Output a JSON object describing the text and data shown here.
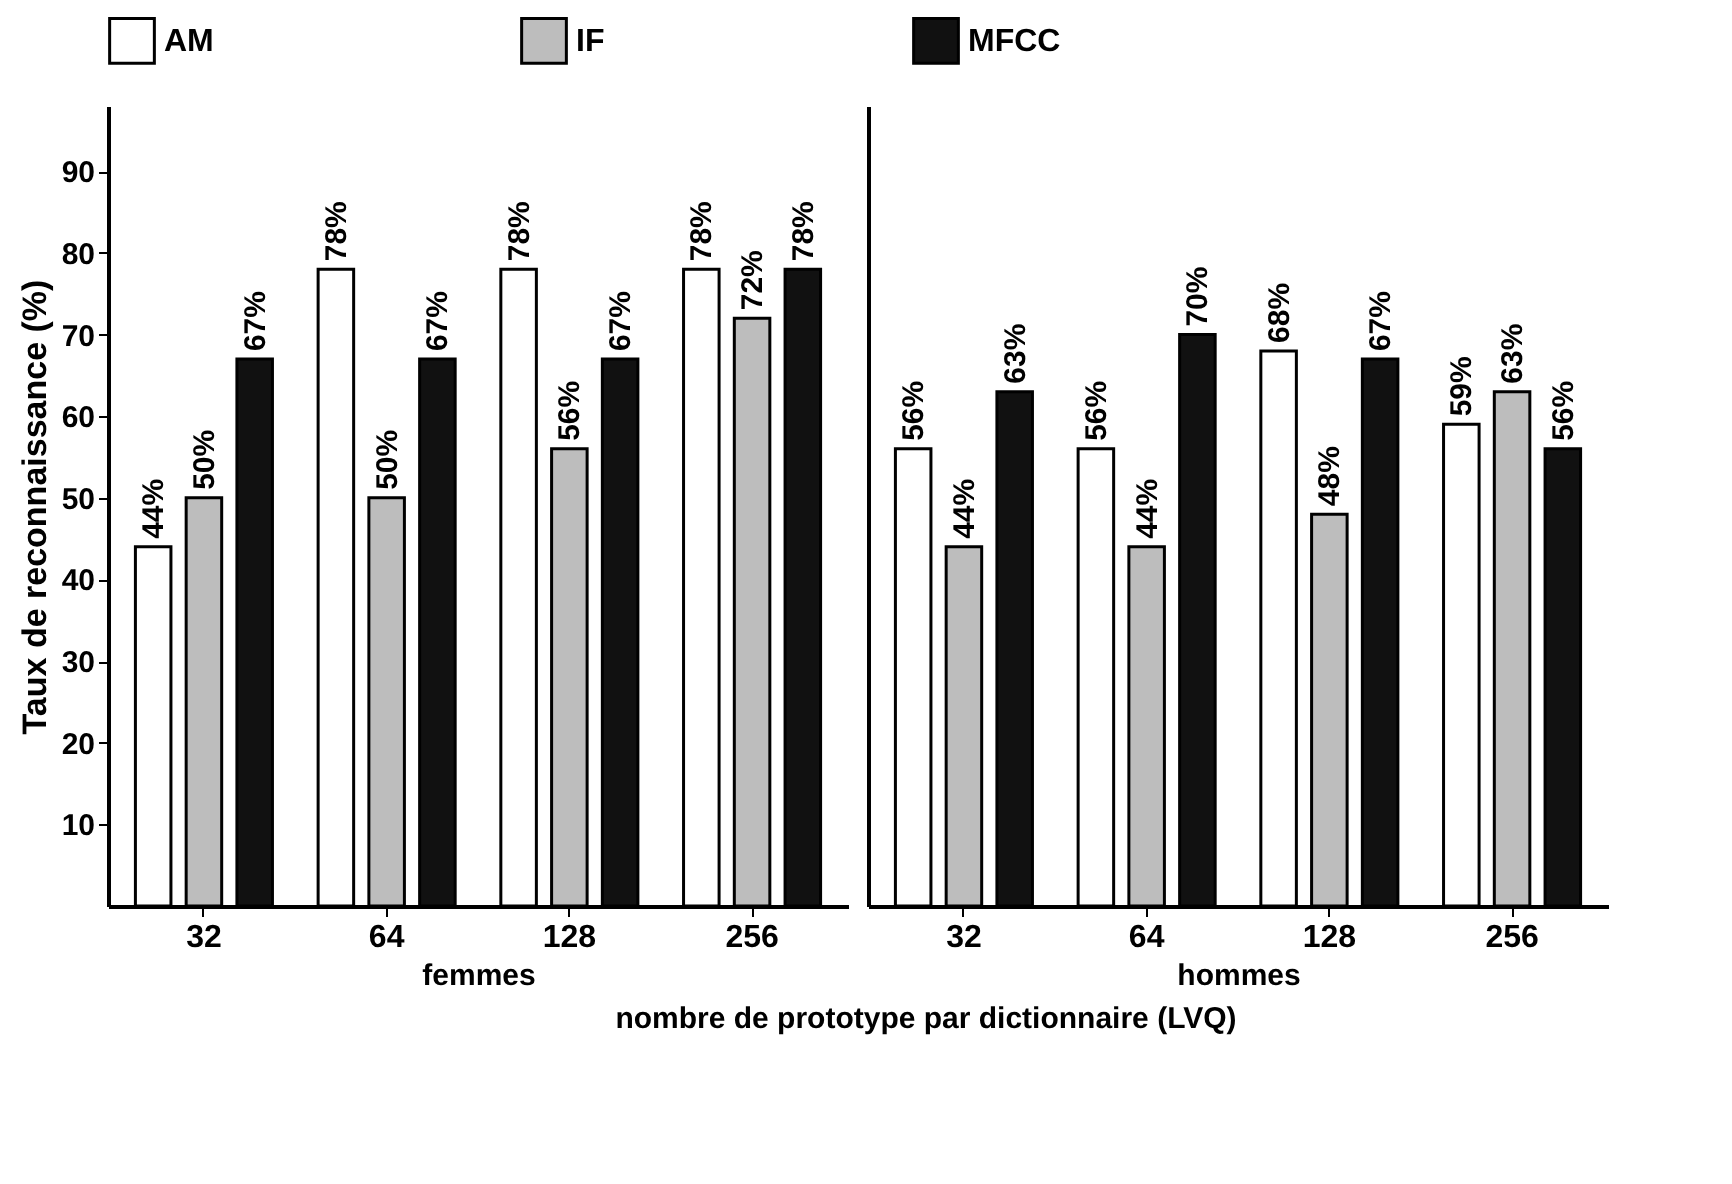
{
  "chart_data": [
    {
      "type": "bar",
      "xlabel": "femmes",
      "ylabel": "Taux de reconnaissance (%)",
      "categories": [
        "32",
        "64",
        "128",
        "256"
      ],
      "ylim": [
        0,
        98
      ],
      "yticks": [
        10,
        20,
        30,
        40,
        50,
        60,
        70,
        80,
        90
      ],
      "legend": "top",
      "grid": false,
      "annotations": [
        "nombre de prototype par dictionnaire (LVQ)"
      ],
      "series": [
        {
          "name": "AM",
          "color": "#ffffff",
          "values": [
            44,
            78,
            78,
            78
          ],
          "value_labels": [
            "44%",
            "78%",
            "78%",
            "78%"
          ]
        },
        {
          "name": "IF",
          "color": "#bdbdbd",
          "values": [
            50,
            50,
            56,
            72
          ],
          "value_labels": [
            "50%",
            "50%",
            "56%",
            "72%"
          ]
        },
        {
          "name": "MFCC",
          "color": "#111111",
          "values": [
            67,
            67,
            67,
            78
          ],
          "value_labels": [
            "67%",
            "67%",
            "67%",
            "78%"
          ]
        }
      ]
    },
    {
      "type": "bar",
      "xlabel": "hommes",
      "categories": [
        "32",
        "64",
        "128",
        "256"
      ],
      "ylim": [
        0,
        98
      ],
      "yticks": [
        10,
        20,
        30,
        40,
        50,
        60,
        70,
        80,
        90
      ],
      "tick_labels": "x",
      "legend": "top",
      "grid": false,
      "series": [
        {
          "name": "AM",
          "color": "#ffffff",
          "values": [
            56,
            56,
            68,
            59
          ],
          "value_labels": [
            "56%",
            "56%",
            "68%",
            "59%"
          ]
        },
        {
          "name": "IF",
          "color": "#bdbdbd",
          "values": [
            44,
            44,
            48,
            63
          ],
          "value_labels": [
            "44%",
            "44%",
            "48%",
            "63%"
          ]
        },
        {
          "name": "MFCC",
          "color": "#111111",
          "values": [
            63,
            70,
            67,
            56
          ],
          "value_labels": [
            "63%",
            "70%",
            "67%",
            "56%"
          ]
        }
      ]
    }
  ]
}
